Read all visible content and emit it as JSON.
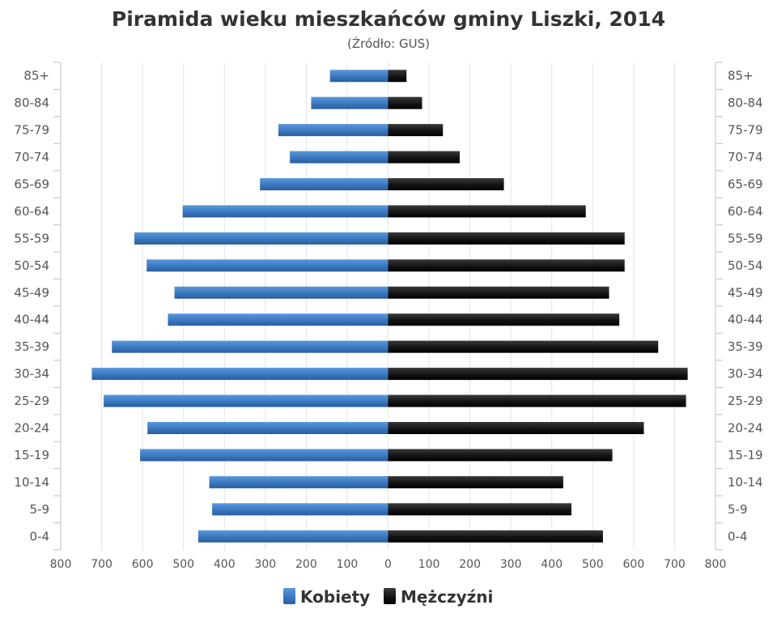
{
  "chart_data": {
    "type": "bar",
    "orientation": "horizontal-pyramid",
    "title": "Piramida wieku mieszkańców gminy Liszki, 2014",
    "subtitle": "(Źródło: GUS)",
    "categories": [
      "85+",
      "80-84",
      "75-79",
      "70-74",
      "65-69",
      "60-64",
      "55-59",
      "50-54",
      "45-49",
      "40-44",
      "35-39",
      "30-34",
      "25-29",
      "20-24",
      "15-19",
      "10-14",
      "5-9",
      "0-4"
    ],
    "series": [
      {
        "name": "Kobiety",
        "color": "#3d7cc4",
        "values": [
          142,
          188,
          268,
          240,
          313,
          502,
          620,
          590,
          522,
          538,
          675,
          724,
          695,
          588,
          606,
          437,
          430,
          464
        ]
      },
      {
        "name": "Mężczyźni",
        "color": "#111111",
        "values": [
          45,
          83,
          134,
          175,
          283,
          483,
          578,
          578,
          540,
          565,
          660,
          732,
          728,
          625,
          548,
          428,
          448,
          525
        ]
      }
    ],
    "xlim": [
      -800,
      800
    ],
    "x_ticks": [
      "800",
      "700",
      "600",
      "500",
      "400",
      "300",
      "200",
      "100",
      "0",
      "100",
      "200",
      "300",
      "400",
      "500",
      "600",
      "700",
      "800"
    ],
    "grid": true,
    "legend_position": "bottom"
  }
}
